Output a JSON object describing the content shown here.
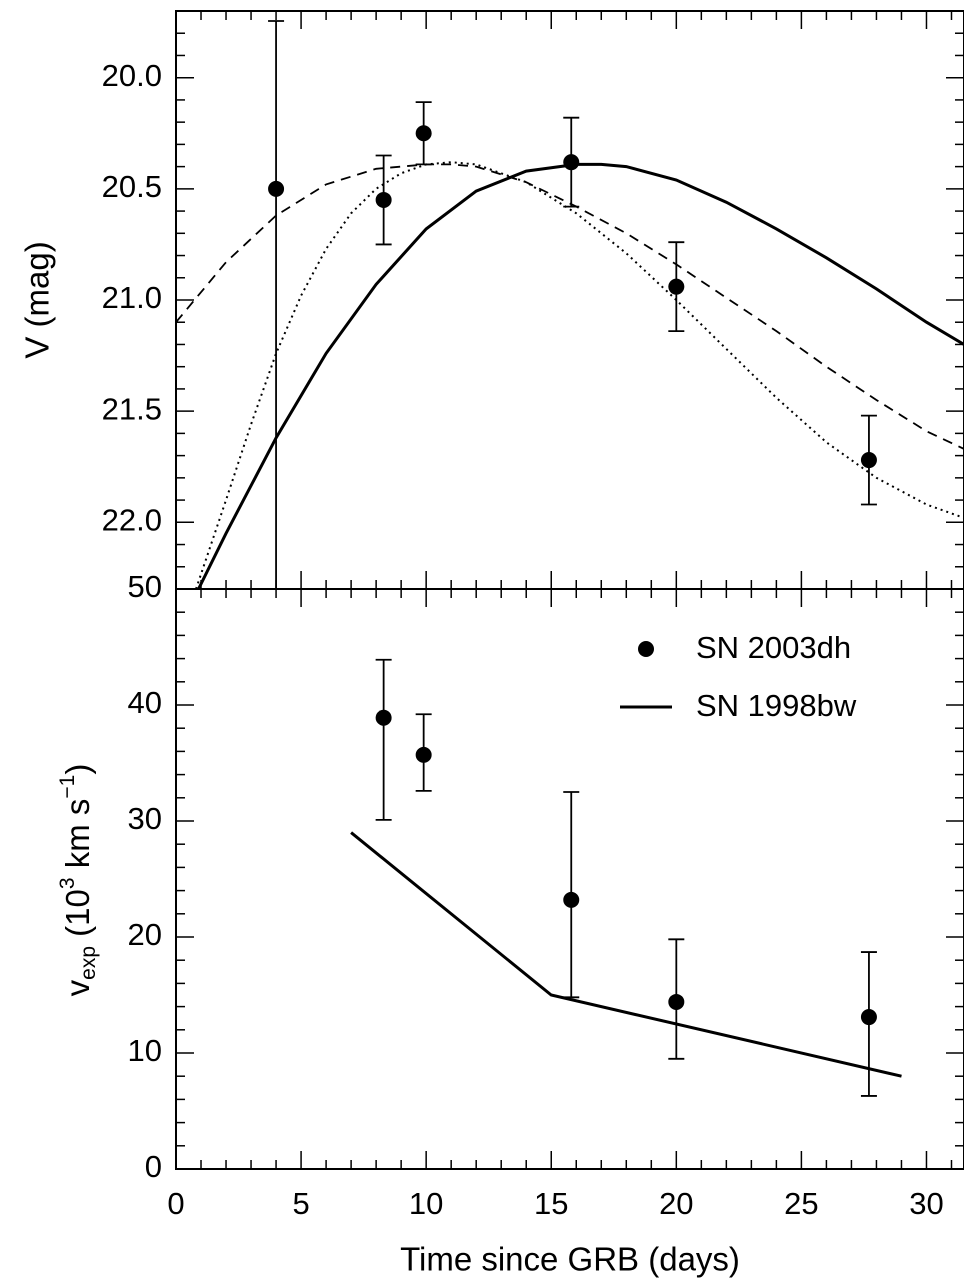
{
  "chart_data": [
    {
      "type": "line",
      "panel": "top",
      "title": "",
      "xlabel": "",
      "ylabel": "V (mag)",
      "xlim": [
        0,
        31.5
      ],
      "ylim": [
        22.3,
        19.7
      ],
      "y_inverted": true,
      "y_ticks": [
        "20.0",
        "20.5",
        "21.0",
        "21.5",
        "22.0"
      ],
      "y_tick_values": [
        20.0,
        20.5,
        21.0,
        21.5,
        22.0
      ],
      "points": {
        "x": [
          4.0,
          8.3,
          9.9,
          15.8,
          20.0,
          27.7
        ],
        "y": [
          20.5,
          20.55,
          20.25,
          20.38,
          20.94,
          21.72
        ],
        "yerr": [
          [
            20.95,
            2.0
          ],
          [
            0.2,
            0.2
          ],
          [
            0.14,
            0.14
          ],
          [
            0.2,
            0.2
          ],
          [
            0.2,
            0.2
          ],
          [
            0.2,
            0.2
          ]
        ]
      },
      "curves": [
        {
          "style": "solid",
          "x": [
            0.9,
            2,
            4,
            6,
            8,
            10,
            12,
            14,
            16,
            17,
            18,
            20,
            22,
            24,
            26,
            28,
            30,
            31.5
          ],
          "y": [
            22.3,
            22.05,
            21.62,
            21.24,
            20.93,
            20.68,
            20.51,
            20.42,
            20.39,
            20.39,
            20.4,
            20.46,
            20.56,
            20.68,
            20.81,
            20.95,
            21.1,
            21.2
          ]
        },
        {
          "style": "dashed",
          "x": [
            0,
            2,
            4,
            6,
            8,
            10,
            11,
            12,
            14,
            16,
            18,
            20,
            22,
            24,
            26,
            28,
            30,
            31.5
          ],
          "y": [
            21.1,
            20.83,
            20.62,
            20.48,
            20.41,
            20.39,
            20.39,
            20.4,
            20.47,
            20.58,
            20.7,
            20.84,
            20.99,
            21.14,
            21.3,
            21.45,
            21.59,
            21.67
          ]
        },
        {
          "style": "dotted",
          "x": [
            0.8,
            2,
            3,
            4,
            5,
            6,
            7,
            8,
            9,
            10,
            11,
            12,
            14,
            16,
            18,
            20,
            22,
            24,
            26,
            28,
            30,
            31.5
          ],
          "y": [
            22.3,
            21.9,
            21.56,
            21.24,
            20.98,
            20.77,
            20.61,
            20.5,
            20.43,
            20.39,
            20.38,
            20.39,
            20.47,
            20.61,
            20.79,
            21.0,
            21.22,
            21.44,
            21.64,
            21.8,
            21.92,
            21.98
          ]
        }
      ]
    },
    {
      "type": "line",
      "panel": "bottom",
      "title": "",
      "xlabel": "Time since GRB (days)",
      "ylabel_main": "v",
      "ylabel_sub": "exp",
      "ylabel_pre": " (10",
      "ylabel_sup": "3",
      "ylabel_post": " km s",
      "ylabel_sup2": "−1",
      "ylabel_close": ")",
      "xlim": [
        0,
        31.5
      ],
      "ylim": [
        0,
        50
      ],
      "x_ticks": [
        "0",
        "5",
        "10",
        "15",
        "20",
        "25",
        "30"
      ],
      "x_tick_values": [
        0,
        5,
        10,
        15,
        20,
        25,
        30
      ],
      "y_ticks": [
        "0",
        "10",
        "20",
        "30",
        "40",
        "50"
      ],
      "y_tick_values": [
        0,
        10,
        20,
        30,
        40,
        50
      ],
      "series": [
        {
          "name": "SN 2003dh",
          "kind": "points",
          "x": [
            8.3,
            9.9,
            15.8,
            20.0,
            27.7
          ],
          "y": [
            38.9,
            35.7,
            23.2,
            14.4,
            13.1
          ],
          "yerr_low": [
            8.8,
            3.1,
            8.4,
            4.9,
            6.8
          ],
          "yerr_high": [
            5.0,
            3.5,
            9.3,
            5.4,
            5.6
          ]
        },
        {
          "name": "SN 1998bw",
          "kind": "line",
          "x": [
            7,
            15,
            29
          ],
          "y": [
            29,
            15,
            8
          ]
        }
      ],
      "legend_placement": "top-right"
    }
  ]
}
